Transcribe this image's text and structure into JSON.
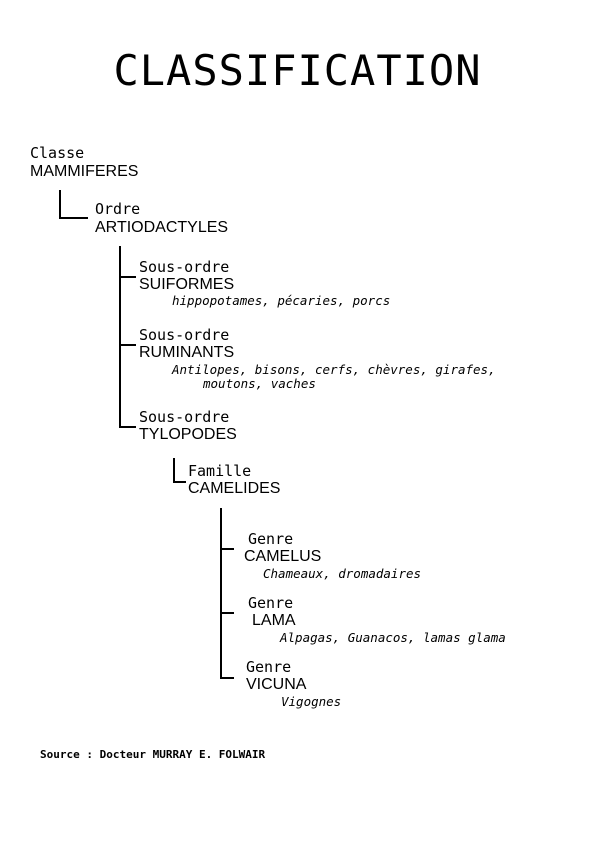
{
  "title": "CLASSIFICATION",
  "taxonomy": {
    "classe": {
      "rank": "Classe",
      "name": "MAMMIFERES"
    },
    "ordre": {
      "rank": "Ordre",
      "name": "ARTIODACTYLES"
    },
    "sous_ordres": [
      {
        "rank": "Sous-ordre",
        "name": "SUIFORMES",
        "examples": "hippopotames, pécaries, porcs"
      },
      {
        "rank": "Sous-ordre",
        "name": "RUMINANTS",
        "examples_line1": "Antilopes, bisons, cerfs, chèvres, girafes,",
        "examples_line2": "moutons, vaches"
      },
      {
        "rank": "Sous-ordre",
        "name": "TYLOPODES"
      }
    ],
    "famille": {
      "rank": "Famille",
      "name": "CAMELIDES"
    },
    "genres": [
      {
        "rank": "Genre",
        "name": "CAMELUS",
        "examples": "Chameaux, dromadaires"
      },
      {
        "rank": "Genre",
        "name": "LAMA",
        "examples": "Alpagas, Guanacos, lamas glama"
      },
      {
        "rank": "Genre",
        "name": "VICUNA",
        "examples": "Vigognes"
      }
    ]
  },
  "source": "Source : Docteur MURRAY E. FOLWAIR"
}
